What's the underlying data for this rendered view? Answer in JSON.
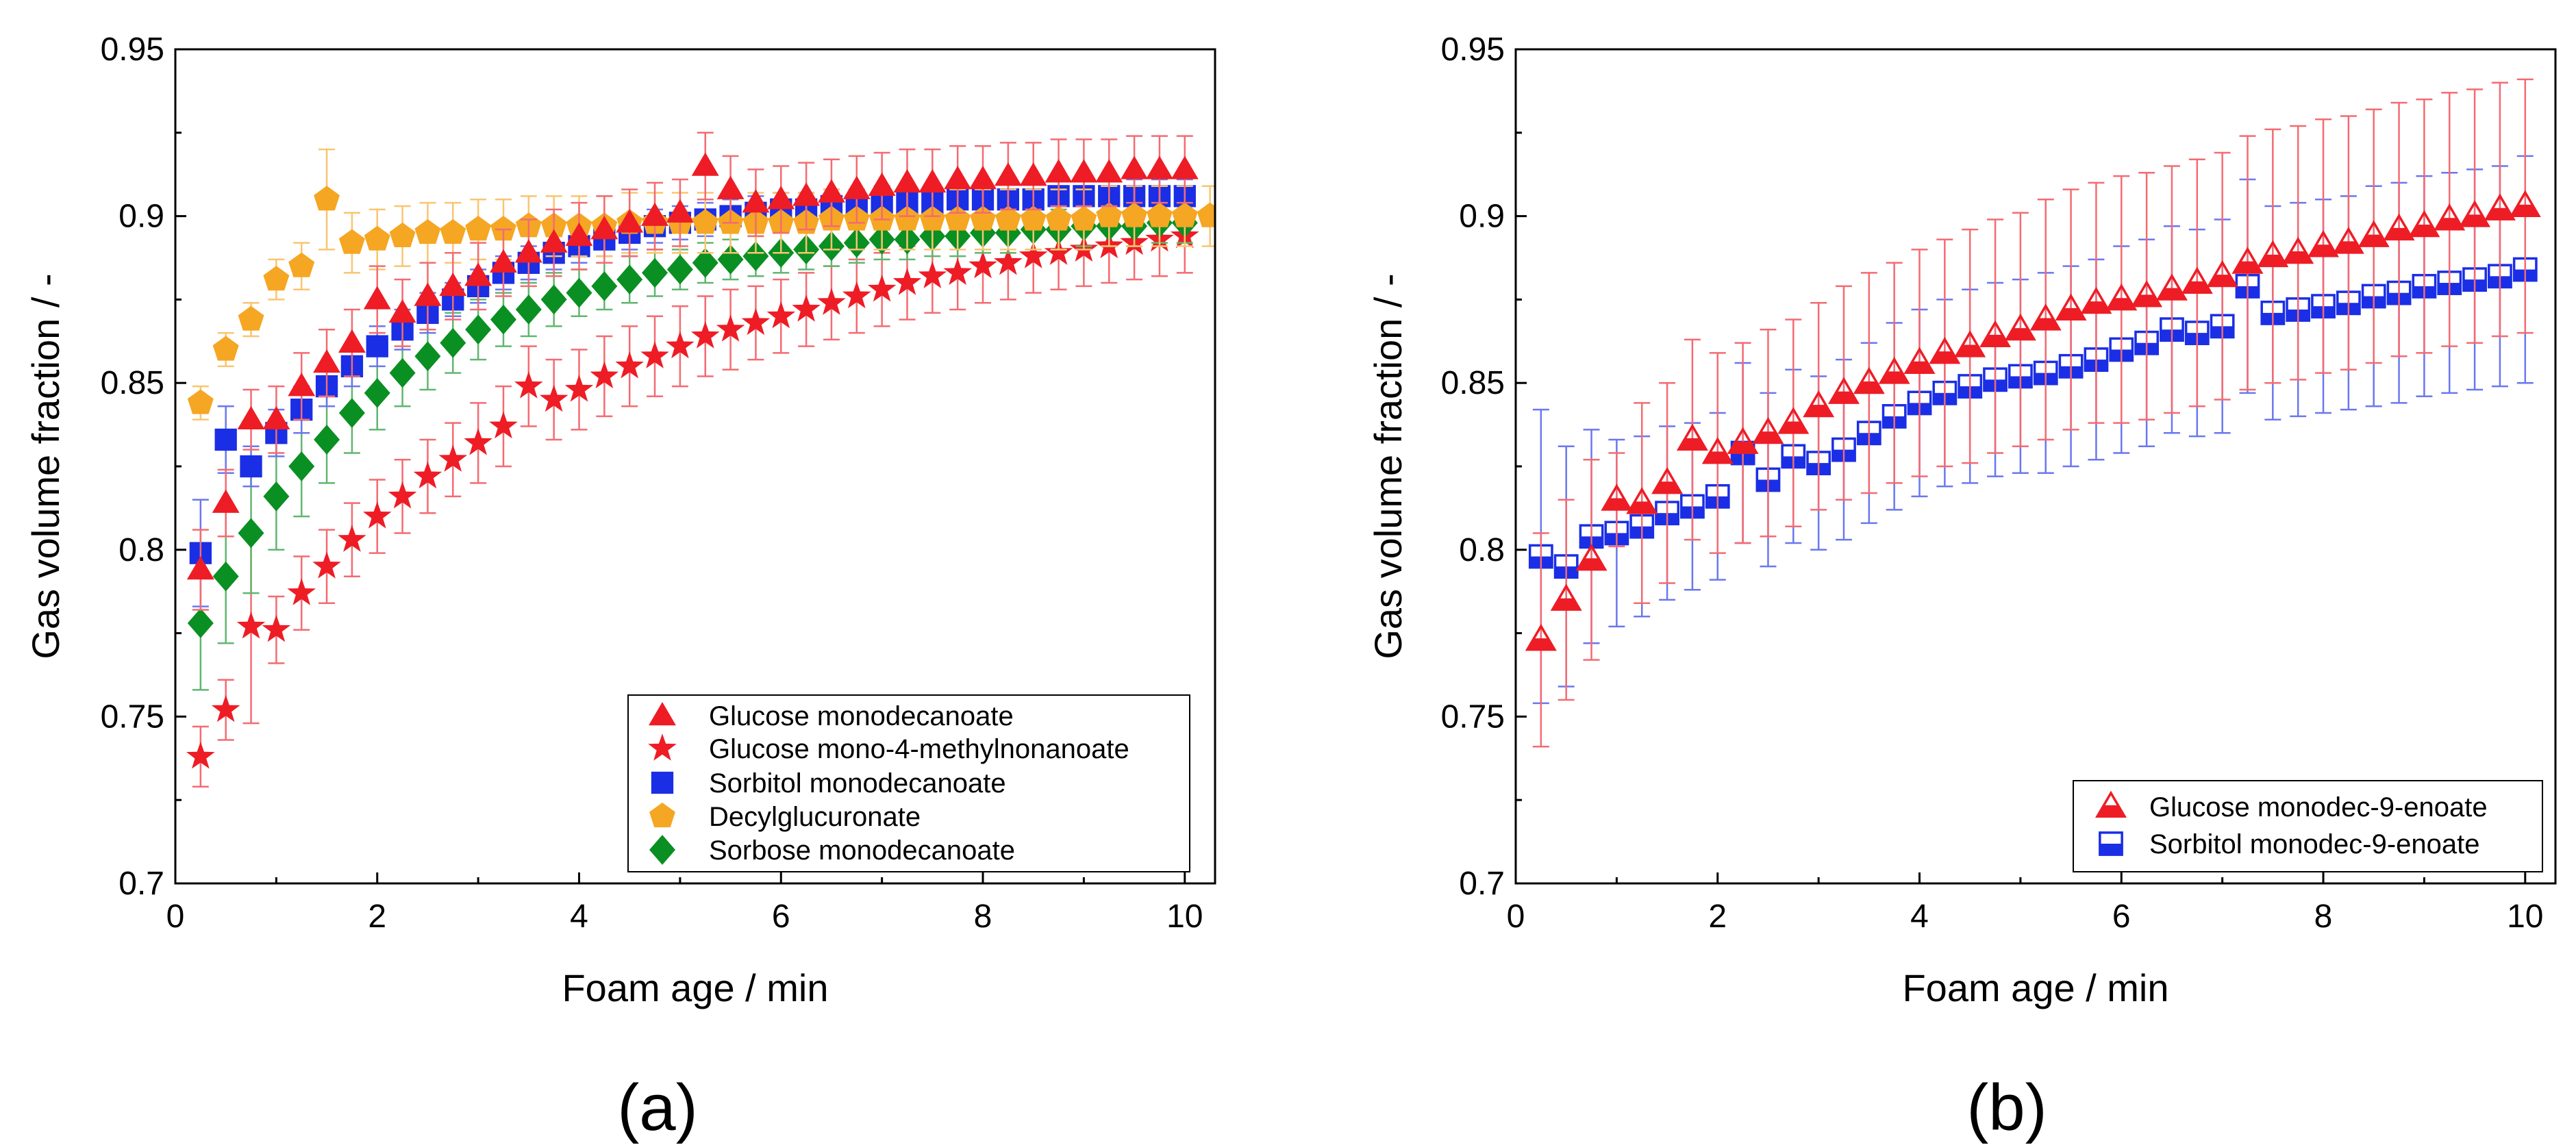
{
  "figure": {
    "panel_labels": [
      "(a)",
      "(b)"
    ]
  },
  "chart_data": [
    {
      "type": "scatter",
      "panel": "(a)",
      "xlabel": "Foam age / min",
      "ylabel": "Gas volume fraction / -",
      "xlim": [
        0,
        10.3
      ],
      "ylim": [
        0.7,
        0.95
      ],
      "xticks": [
        0,
        2,
        4,
        6,
        8,
        10
      ],
      "yticks": [
        0.7,
        0.75,
        0.8,
        0.85,
        0.9,
        0.95
      ],
      "xtick_labels": [
        "0",
        "2",
        "4",
        "6",
        "8",
        "10"
      ],
      "ytick_labels": [
        "0.7",
        "0.75",
        "0.8",
        "0.85",
        "0.9",
        "0.95"
      ],
      "grid": false,
      "error_bars": true,
      "legend_position": "bottom-right",
      "series": [
        {
          "name": "Glucose mono-4-methylnonanoate",
          "color": "#ee1c25",
          "marker": "star",
          "hollow": false,
          "x": [
            0.25,
            0.5,
            0.75,
            1.0,
            1.25,
            1.5,
            1.75,
            2.0,
            2.25,
            2.5,
            2.75,
            3.0,
            3.25,
            3.5,
            3.75,
            4.0,
            4.25,
            4.5,
            4.75,
            5.0,
            5.25,
            5.5,
            5.75,
            6.0,
            6.25,
            6.5,
            6.75,
            7.0,
            7.25,
            7.5,
            7.75,
            8.0,
            8.25,
            8.5,
            8.75,
            9.0,
            9.25,
            9.5,
            9.75,
            10.0
          ],
          "y": [
            0.738,
            0.752,
            0.777,
            0.776,
            0.787,
            0.795,
            0.803,
            0.81,
            0.816,
            0.822,
            0.827,
            0.832,
            0.837,
            0.849,
            0.845,
            0.848,
            0.852,
            0.855,
            0.858,
            0.861,
            0.864,
            0.866,
            0.868,
            0.87,
            0.872,
            0.874,
            0.876,
            0.878,
            0.88,
            0.882,
            0.883,
            0.885,
            0.886,
            0.888,
            0.889,
            0.89,
            0.891,
            0.892,
            0.893,
            0.894
          ],
          "err": [
            0.009,
            0.009,
            0.029,
            0.01,
            0.011,
            0.011,
            0.011,
            0.011,
            0.011,
            0.011,
            0.011,
            0.012,
            0.012,
            0.012,
            0.012,
            0.012,
            0.012,
            0.012,
            0.012,
            0.012,
            0.012,
            0.012,
            0.011,
            0.011,
            0.011,
            0.011,
            0.011,
            0.011,
            0.011,
            0.011,
            0.011,
            0.011,
            0.011,
            0.011,
            0.011,
            0.011,
            0.011,
            0.011,
            0.011,
            0.011
          ]
        },
        {
          "name": "Sorbose monodecanoate",
          "color": "#0a8f22",
          "marker": "diamond",
          "hollow": false,
          "x": [
            0.25,
            0.5,
            0.75,
            1.0,
            1.25,
            1.5,
            1.75,
            2.0,
            2.25,
            2.5,
            2.75,
            3.0,
            3.25,
            3.5,
            3.75,
            4.0,
            4.25,
            4.5,
            4.75,
            5.0,
            5.25,
            5.5,
            5.75,
            6.0,
            6.25,
            6.5,
            6.75,
            7.0,
            7.25,
            7.5,
            7.75,
            8.0,
            8.25,
            8.5,
            8.75,
            9.0,
            9.25,
            9.5,
            9.75,
            10.0
          ],
          "y": [
            0.778,
            0.792,
            0.805,
            0.816,
            0.825,
            0.833,
            0.841,
            0.847,
            0.853,
            0.858,
            0.862,
            0.866,
            0.869,
            0.872,
            0.875,
            0.877,
            0.879,
            0.881,
            0.883,
            0.884,
            0.886,
            0.887,
            0.888,
            0.889,
            0.89,
            0.891,
            0.892,
            0.893,
            0.893,
            0.894,
            0.894,
            0.895,
            0.895,
            0.896,
            0.896,
            0.897,
            0.897,
            0.897,
            0.898,
            0.898
          ],
          "err": [
            0.02,
            0.02,
            0.018,
            0.016,
            0.015,
            0.013,
            0.012,
            0.011,
            0.01,
            0.01,
            0.009,
            0.009,
            0.008,
            0.008,
            0.008,
            0.007,
            0.007,
            0.007,
            0.007,
            0.006,
            0.006,
            0.006,
            0.006,
            0.006,
            0.006,
            0.006,
            0.006,
            0.006,
            0.006,
            0.006,
            0.006,
            0.006,
            0.006,
            0.006,
            0.006,
            0.006,
            0.006,
            0.006,
            0.006,
            0.006
          ]
        },
        {
          "name": "Sorbitol monodecanoate",
          "color": "#1a2ee6",
          "marker": "square",
          "hollow": false,
          "x": [
            0.25,
            0.5,
            0.75,
            1.0,
            1.25,
            1.5,
            1.75,
            2.0,
            2.25,
            2.5,
            2.75,
            3.0,
            3.25,
            3.5,
            3.75,
            4.0,
            4.25,
            4.5,
            4.75,
            5.0,
            5.25,
            5.5,
            5.75,
            6.0,
            6.25,
            6.5,
            6.75,
            7.0,
            7.25,
            7.5,
            7.75,
            8.0,
            8.25,
            8.5,
            8.75,
            9.0,
            9.25,
            9.5,
            9.75,
            10.0
          ],
          "y": [
            0.799,
            0.833,
            0.825,
            0.835,
            0.842,
            0.849,
            0.855,
            0.861,
            0.866,
            0.871,
            0.875,
            0.879,
            0.883,
            0.886,
            0.889,
            0.891,
            0.893,
            0.895,
            0.897,
            0.898,
            0.899,
            0.9,
            0.901,
            0.902,
            0.902,
            0.903,
            0.903,
            0.904,
            0.904,
            0.904,
            0.905,
            0.905,
            0.905,
            0.905,
            0.906,
            0.906,
            0.906,
            0.906,
            0.906,
            0.906
          ],
          "err": [
            0.016,
            0.01,
            0.006,
            0.007,
            0.007,
            0.006,
            0.006,
            0.006,
            0.006,
            0.006,
            0.005,
            0.005,
            0.005,
            0.005,
            0.005,
            0.005,
            0.005,
            0.005,
            0.005,
            0.005,
            0.005,
            0.005,
            0.005,
            0.005,
            0.005,
            0.005,
            0.005,
            0.005,
            0.005,
            0.005,
            0.005,
            0.005,
            0.005,
            0.005,
            0.005,
            0.005,
            0.005,
            0.005,
            0.005,
            0.005
          ]
        },
        {
          "name": "Decylglucuronate",
          "color": "#f5a623",
          "marker": "pentagon",
          "hollow": false,
          "x": [
            0.25,
            0.5,
            0.75,
            1.0,
            1.25,
            1.5,
            1.75,
            2.0,
            2.25,
            2.5,
            2.75,
            3.0,
            3.25,
            3.5,
            3.75,
            4.0,
            4.25,
            4.5,
            4.75,
            5.0,
            5.25,
            5.5,
            5.75,
            6.0,
            6.25,
            6.5,
            6.75,
            7.0,
            7.25,
            7.5,
            7.75,
            8.0,
            8.25,
            8.5,
            8.75,
            9.0,
            9.25,
            9.5,
            9.75,
            10.0,
            10.25
          ],
          "y": [
            0.844,
            0.86,
            0.869,
            0.881,
            0.885,
            0.905,
            0.892,
            0.893,
            0.894,
            0.895,
            0.895,
            0.896,
            0.896,
            0.897,
            0.897,
            0.897,
            0.897,
            0.898,
            0.898,
            0.898,
            0.898,
            0.898,
            0.898,
            0.898,
            0.898,
            0.899,
            0.899,
            0.899,
            0.899,
            0.899,
            0.899,
            0.899,
            0.899,
            0.899,
            0.899,
            0.899,
            0.9,
            0.9,
            0.9,
            0.9,
            0.9
          ],
          "err": [
            0.005,
            0.005,
            0.005,
            0.006,
            0.007,
            0.015,
            0.009,
            0.009,
            0.009,
            0.009,
            0.009,
            0.009,
            0.009,
            0.009,
            0.009,
            0.009,
            0.009,
            0.009,
            0.009,
            0.009,
            0.009,
            0.009,
            0.009,
            0.009,
            0.009,
            0.009,
            0.009,
            0.009,
            0.009,
            0.009,
            0.009,
            0.009,
            0.009,
            0.009,
            0.009,
            0.009,
            0.009,
            0.009,
            0.009,
            0.009,
            0.009
          ]
        },
        {
          "name": "Glucose monodecanoate",
          "color": "#ee1c25",
          "marker": "triangle",
          "hollow": false,
          "x": [
            0.25,
            0.5,
            0.75,
            1.0,
            1.25,
            1.5,
            1.75,
            2.0,
            2.25,
            2.5,
            2.75,
            3.0,
            3.25,
            3.5,
            3.75,
            4.0,
            4.25,
            4.5,
            4.75,
            5.0,
            5.25,
            5.5,
            5.75,
            6.0,
            6.25,
            6.5,
            6.75,
            7.0,
            7.25,
            7.5,
            7.75,
            8.0,
            8.25,
            8.5,
            8.75,
            9.0,
            9.25,
            9.5,
            9.75,
            10.0
          ],
          "y": [
            0.794,
            0.814,
            0.839,
            0.839,
            0.849,
            0.856,
            0.862,
            0.875,
            0.871,
            0.876,
            0.879,
            0.882,
            0.886,
            0.889,
            0.892,
            0.894,
            0.896,
            0.898,
            0.9,
            0.901,
            0.915,
            0.908,
            0.904,
            0.905,
            0.906,
            0.907,
            0.908,
            0.909,
            0.91,
            0.91,
            0.911,
            0.911,
            0.912,
            0.912,
            0.913,
            0.913,
            0.913,
            0.914,
            0.914,
            0.914
          ],
          "err": [
            0.012,
            0.01,
            0.009,
            0.01,
            0.01,
            0.01,
            0.01,
            0.01,
            0.01,
            0.01,
            0.01,
            0.01,
            0.01,
            0.01,
            0.01,
            0.01,
            0.01,
            0.01,
            0.01,
            0.01,
            0.01,
            0.01,
            0.01,
            0.01,
            0.01,
            0.01,
            0.01,
            0.01,
            0.01,
            0.01,
            0.01,
            0.01,
            0.01,
            0.01,
            0.01,
            0.01,
            0.01,
            0.01,
            0.01,
            0.01
          ]
        }
      ],
      "legend_order": [
        "Glucose monodecanoate",
        "Glucose mono-4-methylnonanoate",
        "Sorbitol monodecanoate",
        "Decylglucuronate",
        "Sorbose monodecanoate"
      ]
    },
    {
      "type": "scatter",
      "panel": "(b)",
      "xlabel": "Foam age / min",
      "ylabel": "Gas volume fraction / -",
      "xlim": [
        0,
        10.3
      ],
      "ylim": [
        0.7,
        0.95
      ],
      "xticks": [
        0,
        2,
        4,
        6,
        8,
        10
      ],
      "yticks": [
        0.7,
        0.75,
        0.8,
        0.85,
        0.9,
        0.95
      ],
      "xtick_labels": [
        "0",
        "2",
        "4",
        "6",
        "8",
        "10"
      ],
      "ytick_labels": [
        "0.7",
        "0.75",
        "0.8",
        "0.85",
        "0.9",
        "0.95"
      ],
      "grid": false,
      "error_bars": true,
      "legend_position": "bottom-right",
      "series": [
        {
          "name": "Sorbitol monodec-9-enoate",
          "color": "#1a2ee6",
          "marker": "half-square",
          "hollow": true,
          "x": [
            0.25,
            0.5,
            0.75,
            1.0,
            1.25,
            1.5,
            1.75,
            2.0,
            2.25,
            2.5,
            2.75,
            3.0,
            3.25,
            3.5,
            3.75,
            4.0,
            4.25,
            4.5,
            4.75,
            5.0,
            5.25,
            5.5,
            5.75,
            6.0,
            6.25,
            6.5,
            6.75,
            7.0,
            7.25,
            7.5,
            7.75,
            8.0,
            8.25,
            8.5,
            8.75,
            9.0,
            9.25,
            9.5,
            9.75,
            10.0
          ],
          "y": [
            0.798,
            0.795,
            0.804,
            0.805,
            0.807,
            0.811,
            0.813,
            0.816,
            0.829,
            0.821,
            0.828,
            0.826,
            0.83,
            0.835,
            0.84,
            0.844,
            0.847,
            0.849,
            0.851,
            0.852,
            0.853,
            0.855,
            0.857,
            0.86,
            0.862,
            0.866,
            0.865,
            0.867,
            0.879,
            0.871,
            0.872,
            0.873,
            0.874,
            0.876,
            0.877,
            0.879,
            0.88,
            0.881,
            0.882,
            0.884
          ],
          "err": [
            0.044,
            0.036,
            0.032,
            0.028,
            0.027,
            0.026,
            0.025,
            0.025,
            0.027,
            0.026,
            0.026,
            0.026,
            0.027,
            0.027,
            0.028,
            0.028,
            0.028,
            0.029,
            0.029,
            0.029,
            0.03,
            0.03,
            0.03,
            0.031,
            0.031,
            0.031,
            0.031,
            0.032,
            0.032,
            0.032,
            0.032,
            0.032,
            0.032,
            0.033,
            0.033,
            0.033,
            0.033,
            0.033,
            0.033,
            0.034
          ]
        },
        {
          "name": "Glucose monodec-9-enoate",
          "color": "#ee1c25",
          "marker": "half-triangle",
          "hollow": true,
          "x": [
            0.25,
            0.5,
            0.75,
            1.0,
            1.25,
            1.5,
            1.75,
            2.0,
            2.25,
            2.5,
            2.75,
            3.0,
            3.25,
            3.5,
            3.75,
            4.0,
            4.25,
            4.5,
            4.75,
            5.0,
            5.25,
            5.5,
            5.75,
            6.0,
            6.25,
            6.5,
            6.75,
            7.0,
            7.25,
            7.5,
            7.75,
            8.0,
            8.25,
            8.5,
            8.75,
            9.0,
            9.25,
            9.5,
            9.75,
            10.0
          ],
          "y": [
            0.773,
            0.785,
            0.797,
            0.815,
            0.814,
            0.82,
            0.833,
            0.829,
            0.832,
            0.835,
            0.838,
            0.843,
            0.847,
            0.85,
            0.853,
            0.856,
            0.859,
            0.861,
            0.864,
            0.866,
            0.869,
            0.872,
            0.874,
            0.875,
            0.876,
            0.878,
            0.88,
            0.882,
            0.886,
            0.888,
            0.889,
            0.891,
            0.892,
            0.894,
            0.896,
            0.897,
            0.899,
            0.9,
            0.902,
            0.903
          ],
          "err": [
            0.032,
            0.03,
            0.03,
            0.014,
            0.03,
            0.03,
            0.03,
            0.03,
            0.03,
            0.031,
            0.031,
            0.031,
            0.032,
            0.033,
            0.033,
            0.034,
            0.034,
            0.035,
            0.035,
            0.035,
            0.036,
            0.036,
            0.036,
            0.037,
            0.037,
            0.037,
            0.037,
            0.037,
            0.038,
            0.038,
            0.038,
            0.038,
            0.038,
            0.038,
            0.038,
            0.038,
            0.038,
            0.038,
            0.038,
            0.038
          ]
        }
      ],
      "legend_order": [
        "Glucose monodec-9-enoate",
        "Sorbitol monodec-9-enoate"
      ]
    }
  ]
}
